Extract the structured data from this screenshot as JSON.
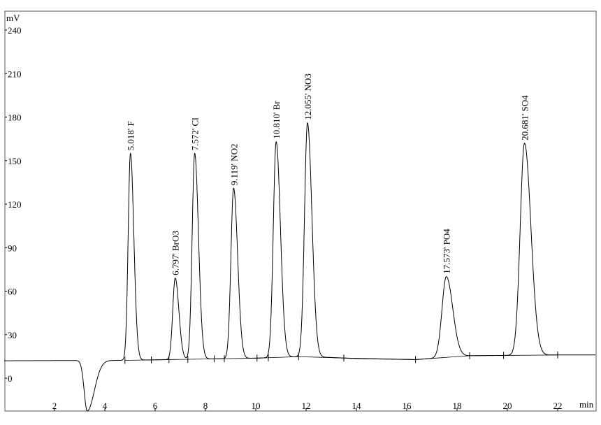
{
  "chart_data": {
    "type": "line",
    "title": "",
    "xlabel": "min",
    "ylabel": "mV",
    "xlim": [
      0,
      23.5
    ],
    "ylim": [
      -22.6,
      253
    ],
    "x_ticks": [
      2,
      4,
      6,
      8,
      10,
      12,
      14,
      16,
      18,
      20,
      22
    ],
    "y_ticks": [
      0,
      30,
      60,
      90,
      120,
      150,
      180,
      210,
      240
    ],
    "grid": false,
    "baseline_mV": 12,
    "system_dip": {
      "time": 3.3,
      "value": -22.6
    },
    "peaks": [
      {
        "label": "5.018' F",
        "time": 5.018,
        "height": 155
      },
      {
        "label": "6.797' BrO3",
        "time": 6.797,
        "height": 69
      },
      {
        "label": "7.572' Cl",
        "time": 7.572,
        "height": 155
      },
      {
        "label": "9.119' NO2",
        "time": 9.119,
        "height": 131
      },
      {
        "label": "10.810' Br",
        "time": 10.81,
        "height": 163
      },
      {
        "label": "12.055' NO3",
        "time": 12.055,
        "height": 176
      },
      {
        "label": "17.573' PO4",
        "time": 17.573,
        "height": 70
      },
      {
        "label": "20.681' SO4",
        "time": 20.681,
        "height": 162
      }
    ],
    "integration_marks": [
      4.8,
      5.85,
      6.55,
      7.3,
      8.35,
      8.75,
      10.05,
      10.5,
      11.7,
      13.5,
      16.35,
      18.5,
      19.85,
      22.0
    ]
  }
}
